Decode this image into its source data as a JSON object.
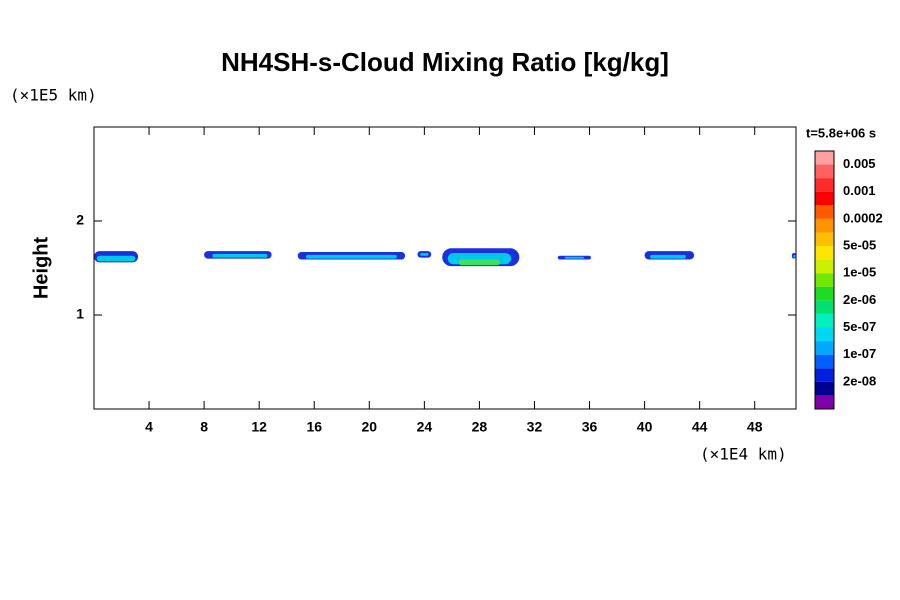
{
  "chart_data": {
    "type": "contour",
    "title": "NH4SH-s-Cloud Mixing Ratio [kg/kg]",
    "y_label": "Height",
    "y_unit": "(×1E5 km)",
    "x_unit": "(×1E4 km)",
    "time_label": "t=5.8e+06 s",
    "xlim": [
      0,
      51
    ],
    "ylim": [
      0,
      3
    ],
    "xticks": [
      4,
      8,
      12,
      16,
      20,
      24,
      28,
      32,
      36,
      40,
      44,
      48
    ],
    "yticks": [
      1,
      2
    ],
    "outer_color": "#1a2fe0",
    "core_color": "#00c8e8",
    "peak_color": "#40e060",
    "clouds": [
      {
        "x": [
          0,
          3.2
        ],
        "y": [
          1.56,
          1.68
        ],
        "core_x": [
          0.2,
          3.0
        ],
        "core_y": [
          1.57,
          1.63
        ]
      },
      {
        "x": [
          8.0,
          12.9
        ],
        "y": [
          1.6,
          1.68
        ],
        "core_x": [
          8.6,
          12.6
        ],
        "core_y": [
          1.61,
          1.65
        ]
      },
      {
        "x": [
          14.8,
          22.6
        ],
        "y": [
          1.59,
          1.67
        ],
        "core_x": [
          15.4,
          22.0
        ],
        "core_y": [
          1.6,
          1.64
        ]
      },
      {
        "x": [
          23.5,
          24.5
        ],
        "y": [
          1.61,
          1.68
        ],
        "core_x": [
          23.7,
          24.3
        ],
        "core_y": [
          1.63,
          1.66
        ]
      },
      {
        "x": [
          25.3,
          30.9
        ],
        "y": [
          1.52,
          1.71
        ],
        "core_x": [
          25.7,
          30.3
        ],
        "core_y": [
          1.54,
          1.66
        ]
      },
      {
        "x": [
          33.7,
          36.1
        ],
        "y": [
          1.59,
          1.63
        ],
        "core_x": [
          34.2,
          35.6
        ],
        "core_y": [
          1.6,
          1.62
        ]
      },
      {
        "x": [
          40.0,
          43.6
        ],
        "y": [
          1.59,
          1.68
        ],
        "core_x": [
          40.4,
          43.0
        ],
        "core_y": [
          1.6,
          1.64
        ]
      },
      {
        "x": [
          50.7,
          51
        ],
        "y": [
          1.6,
          1.66
        ],
        "core_x": [
          50.8,
          51
        ],
        "core_y": [
          1.61,
          1.64
        ]
      }
    ],
    "peak": {
      "x": [
        26.5,
        29.5
      ],
      "y": [
        1.53,
        1.59
      ]
    },
    "colorbar": {
      "colors": [
        "#ff9f9f",
        "#ff6060",
        "#ff2a2a",
        "#ff0000",
        "#ff5a00",
        "#ff9400",
        "#ffbe00",
        "#ffe600",
        "#c8f000",
        "#70e800",
        "#20dc20",
        "#00e070",
        "#00f0c0",
        "#00d8f0",
        "#00a8ff",
        "#0060ff",
        "#0020e0",
        "#000090",
        "#8000a8"
      ],
      "labels": [
        "0.005",
        "0.001",
        "0.0002",
        "5e-05",
        "1e-05",
        "2e-06",
        "5e-07",
        "1e-07",
        "2e-08"
      ]
    }
  }
}
